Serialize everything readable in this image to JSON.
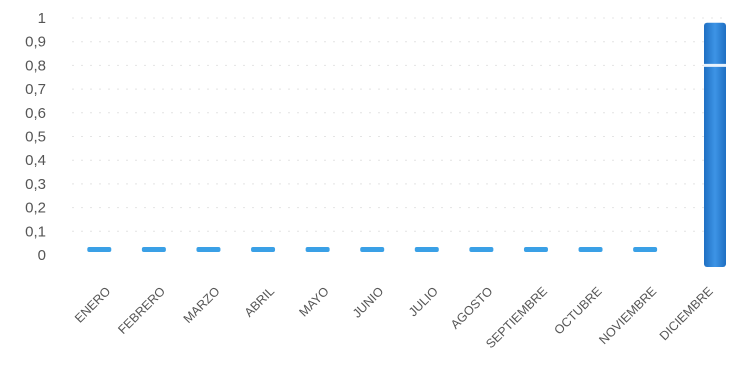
{
  "chart_data": {
    "type": "bar",
    "categories": [
      "ENERO",
      "FEBRERO",
      "MARZO",
      "ABRIL",
      "MAYO",
      "JUNIO",
      "JULIO",
      "AGOSTO",
      "SEPTIEMBRE",
      "OCTUBRE",
      "NOVIEMBRE",
      "DICIEMBRE"
    ],
    "values": [
      0.02,
      0.02,
      0.02,
      0.02,
      0.02,
      0.02,
      0.02,
      0.02,
      0.02,
      0.02,
      0.02,
      0.98
    ],
    "ylim": [
      0,
      1
    ],
    "yticks": [
      "0",
      "0,1",
      "0,2",
      "0,3",
      "0,4",
      "0,5",
      "0,6",
      "0,7",
      "0,8",
      "0,9",
      "1"
    ],
    "grid": true,
    "legend": "none",
    "bar_color": "#2a7fd4",
    "title": "",
    "xlabel": "",
    "ylabel": ""
  }
}
